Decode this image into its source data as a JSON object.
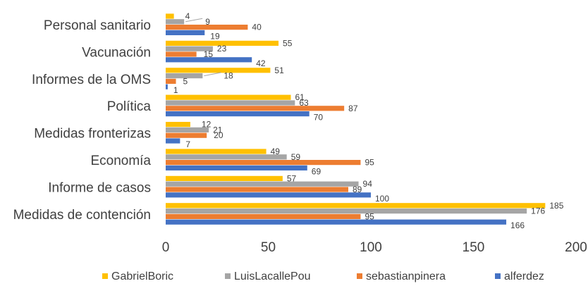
{
  "chart_data": {
    "type": "bar",
    "orientation": "horizontal",
    "categories": [
      "Personal sanitario",
      "Vacunación",
      "Informes de la OMS",
      "Política",
      "Medidas fronterizas",
      "Economía",
      "Informe de casos",
      "Medidas de contención"
    ],
    "series": [
      {
        "name": "GabrielBoric",
        "color": "#ffc000",
        "values": [
          4,
          55,
          51,
          61,
          12,
          49,
          57,
          185
        ]
      },
      {
        "name": "LuisLacallePou",
        "color": "#a5a5a5",
        "values": [
          9,
          23,
          18,
          63,
          21,
          59,
          94,
          176
        ]
      },
      {
        "name": "sebastianpinera",
        "color": "#ed7d31",
        "values": [
          40,
          15,
          5,
          87,
          20,
          95,
          89,
          95
        ]
      },
      {
        "name": "alferdez",
        "color": "#4472c4",
        "values": [
          19,
          42,
          1,
          70,
          7,
          69,
          100,
          166
        ]
      }
    ],
    "xlim": [
      0,
      200
    ],
    "xticks": [
      "0",
      "50",
      "100",
      "150",
      "200"
    ],
    "grid": false,
    "legend_position": "bottom",
    "data_labels": true
  }
}
